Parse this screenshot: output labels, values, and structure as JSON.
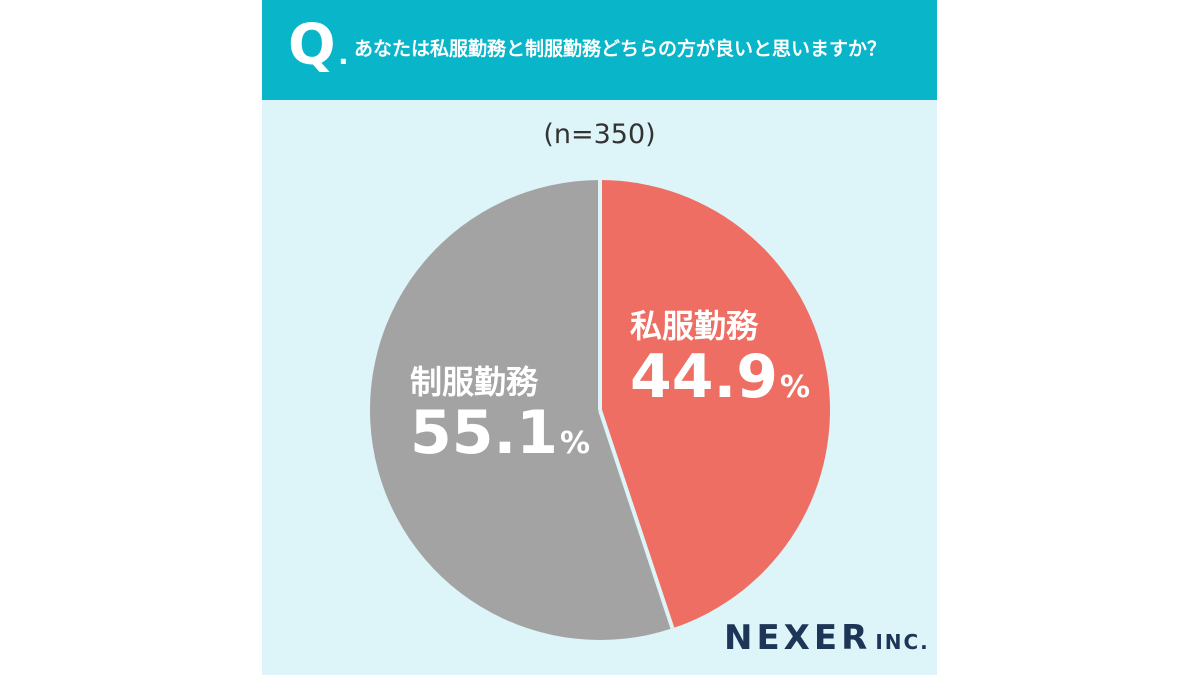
{
  "header": {
    "q_letter": "Q",
    "q_dot": ".",
    "question": "あなたは私服勤務と制服勤務どちらの方が良いと思いますか？"
  },
  "sample_label": "(n=350)",
  "chart_data": {
    "type": "pie",
    "title": "あなたは私服勤務と制服勤務どちらの方が良いと思いますか？",
    "subtitle": "(n=350)",
    "slices": [
      {
        "label": "私服勤務",
        "value": 44.9,
        "value_text": "44.9",
        "unit": "%",
        "color": "#ee6e63"
      },
      {
        "label": "制服勤務",
        "value": 55.1,
        "value_text": "55.1",
        "unit": "%",
        "color": "#a3a3a3"
      }
    ],
    "start": "top",
    "direction": "clockwise"
  },
  "logo": {
    "main": "NEXER",
    "suffix": "INC."
  },
  "colors": {
    "header": "#08b5c9",
    "panel": "#ddf4f8",
    "separator": "#ddf4f8"
  }
}
